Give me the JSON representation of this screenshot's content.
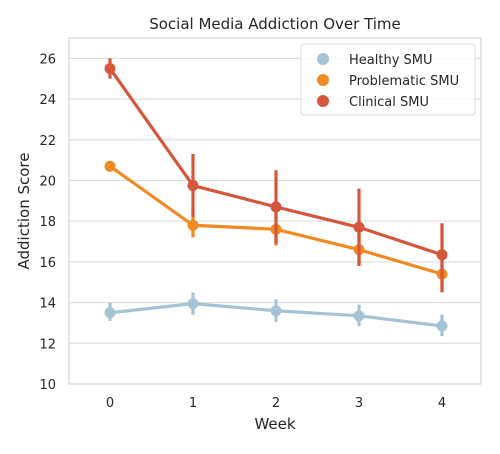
{
  "chart_data": {
    "type": "line",
    "title": "Social Media Addiction Over Time",
    "xlabel": "Week",
    "ylabel": "Addiction Score",
    "categories": [
      "0",
      "1",
      "2",
      "3",
      "4"
    ],
    "ylim": [
      10,
      27
    ],
    "yticks": [
      10,
      12,
      14,
      16,
      18,
      20,
      22,
      24,
      26
    ],
    "grid": true,
    "legend_position": "top-right",
    "series": [
      {
        "name": "Healthy SMU",
        "color": "#a6c3d6",
        "values": [
          13.5,
          13.95,
          13.6,
          13.35,
          12.85
        ],
        "ci_low": [
          13.1,
          13.4,
          13.05,
          12.85,
          12.35
        ],
        "ci_high": [
          14.0,
          14.5,
          14.15,
          13.9,
          13.4
        ]
      },
      {
        "name": "Problematic SMU",
        "color": "#f08a24",
        "values": [
          20.7,
          17.8,
          17.6,
          16.6,
          15.4
        ],
        "ci_low": [
          20.5,
          17.2,
          16.8,
          15.8,
          14.6
        ],
        "ci_high": [
          20.9,
          18.4,
          18.4,
          17.4,
          16.2
        ]
      },
      {
        "name": "Clinical SMU",
        "color": "#d5573b",
        "values": [
          25.5,
          19.75,
          18.7,
          17.7,
          16.35
        ],
        "ci_low": [
          25.0,
          18.2,
          16.9,
          15.8,
          14.5
        ],
        "ci_high": [
          26.0,
          21.3,
          20.5,
          19.6,
          17.9
        ]
      }
    ]
  }
}
